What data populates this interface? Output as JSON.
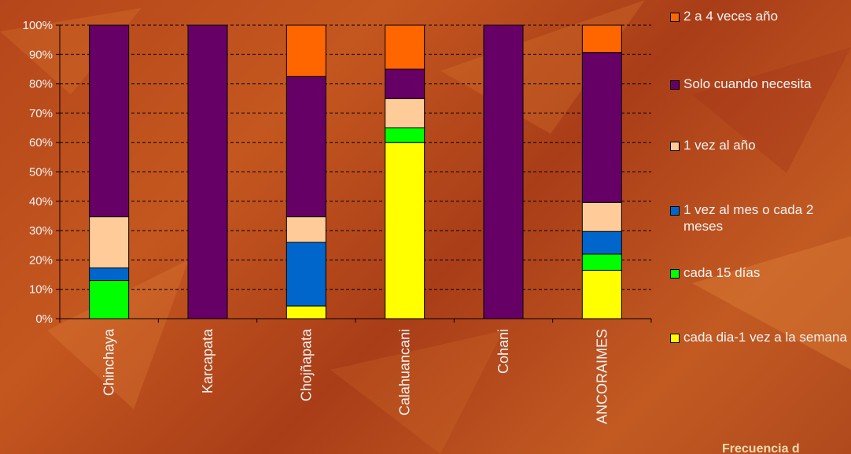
{
  "chart_data": {
    "type": "bar",
    "stacked": true,
    "normalized": true,
    "categories": [
      "Chinchaya",
      "Karcapata",
      "Chojñapata",
      "Calahuancani",
      "Cohani",
      "ANCORAIMES"
    ],
    "y_ticks": [
      "0%",
      "10%",
      "20%",
      "30%",
      "40%",
      "50%",
      "60%",
      "70%",
      "80%",
      "90%",
      "100%"
    ],
    "ylim": [
      0,
      100
    ],
    "grid": "horizontal dashed",
    "legend_position": "right",
    "series": [
      {
        "name": "cada dia-1 vez a la semana",
        "color": "#ffff00",
        "values": [
          0,
          0,
          4.3,
          60,
          0,
          16.5
        ]
      },
      {
        "name": "cada 15 días",
        "color": "#00ff00",
        "values": [
          13,
          0,
          0,
          5,
          0,
          5.5
        ]
      },
      {
        "name": "1 vez al mes o cada 2 meses",
        "color": "#0066cc",
        "values": [
          4.3,
          0,
          21.7,
          0,
          0,
          7.7
        ]
      },
      {
        "name": "1 vez al año",
        "color": "#ffcc99",
        "values": [
          17.4,
          0,
          8.7,
          10,
          0,
          9.9
        ]
      },
      {
        "name": "Solo cuando necesita",
        "color": "#660066",
        "values": [
          65.3,
          100,
          47.8,
          10,
          100,
          51.1
        ]
      },
      {
        "name": "2 a 4 veces año",
        "color": "#ff6600",
        "values": [
          0,
          0,
          17.5,
          15,
          0,
          9.3
        ]
      }
    ]
  },
  "footer": {
    "title": "Frecuencia d"
  },
  "colors": {
    "background": "#b5461b",
    "axis": "#000000"
  }
}
